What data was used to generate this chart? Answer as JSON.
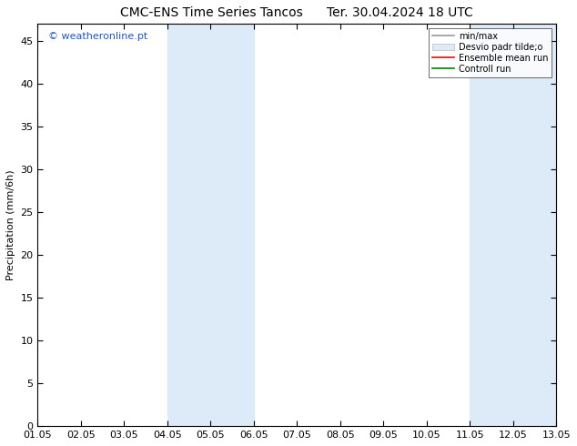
{
  "title_left": "CMC-ENS Time Series Tancos",
  "title_right": "Ter. 30.04.2024 18 UTC",
  "ylabel": "Precipitation (mm/6h)",
  "watermark": "© weatheronline.pt",
  "ylim": [
    0,
    47
  ],
  "yticks": [
    0,
    5,
    10,
    15,
    20,
    25,
    30,
    35,
    40,
    45
  ],
  "xtick_labels": [
    "01.05",
    "02.05",
    "03.05",
    "04.05",
    "05.05",
    "06.05",
    "07.05",
    "08.05",
    "09.05",
    "10.05",
    "11.05",
    "12.05",
    "13.05"
  ],
  "shaded_regions": [
    {
      "xmin": 3,
      "xmax": 5,
      "color": "#ddeaf7"
    },
    {
      "xmin": 10,
      "xmax": 12,
      "color": "#ddeaf7"
    }
  ],
  "legend_entries": [
    {
      "label": "min/max",
      "type": "line",
      "color": "#999999",
      "lw": 1.2
    },
    {
      "label": "Desvio padr tilde;o",
      "type": "patch",
      "facecolor": "#ddeaf7",
      "edgecolor": "#bbbbbb"
    },
    {
      "label": "Ensemble mean run",
      "type": "line",
      "color": "red",
      "lw": 1.2
    },
    {
      "label": "Controll run",
      "type": "line",
      "color": "green",
      "lw": 1.2
    }
  ],
  "bg_color": "#ffffff",
  "plot_bg_color": "#ffffff",
  "title_fontsize": 10,
  "watermark_color": "#2255cc",
  "watermark_fontsize": 8,
  "tick_fontsize": 8,
  "ylabel_fontsize": 8
}
